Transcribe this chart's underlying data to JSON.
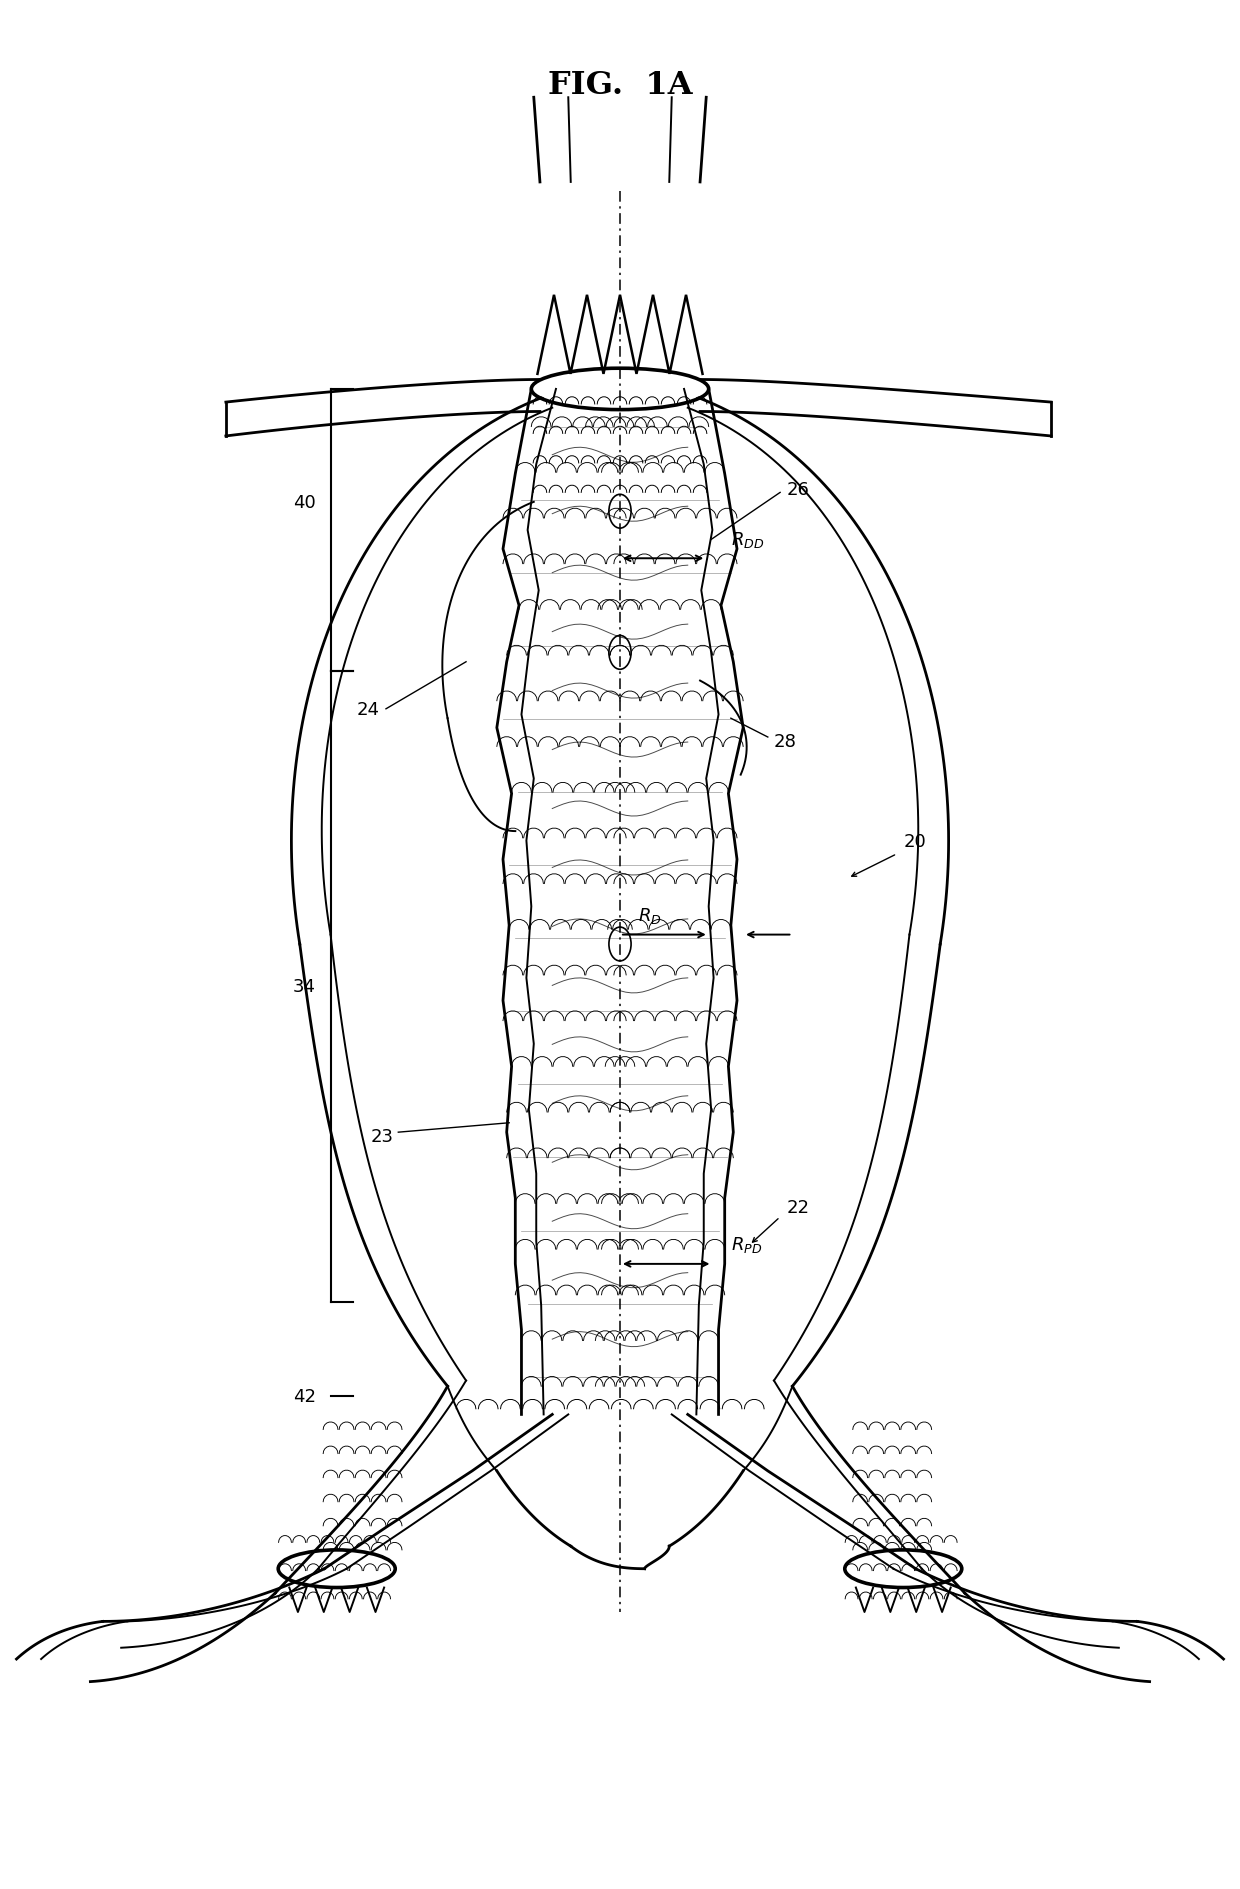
{
  "title": "FIG.  1A",
  "bg": "#ffffff",
  "lc": "#000000",
  "fig_w": 12.4,
  "fig_h": 18.9,
  "dpi": 100
}
